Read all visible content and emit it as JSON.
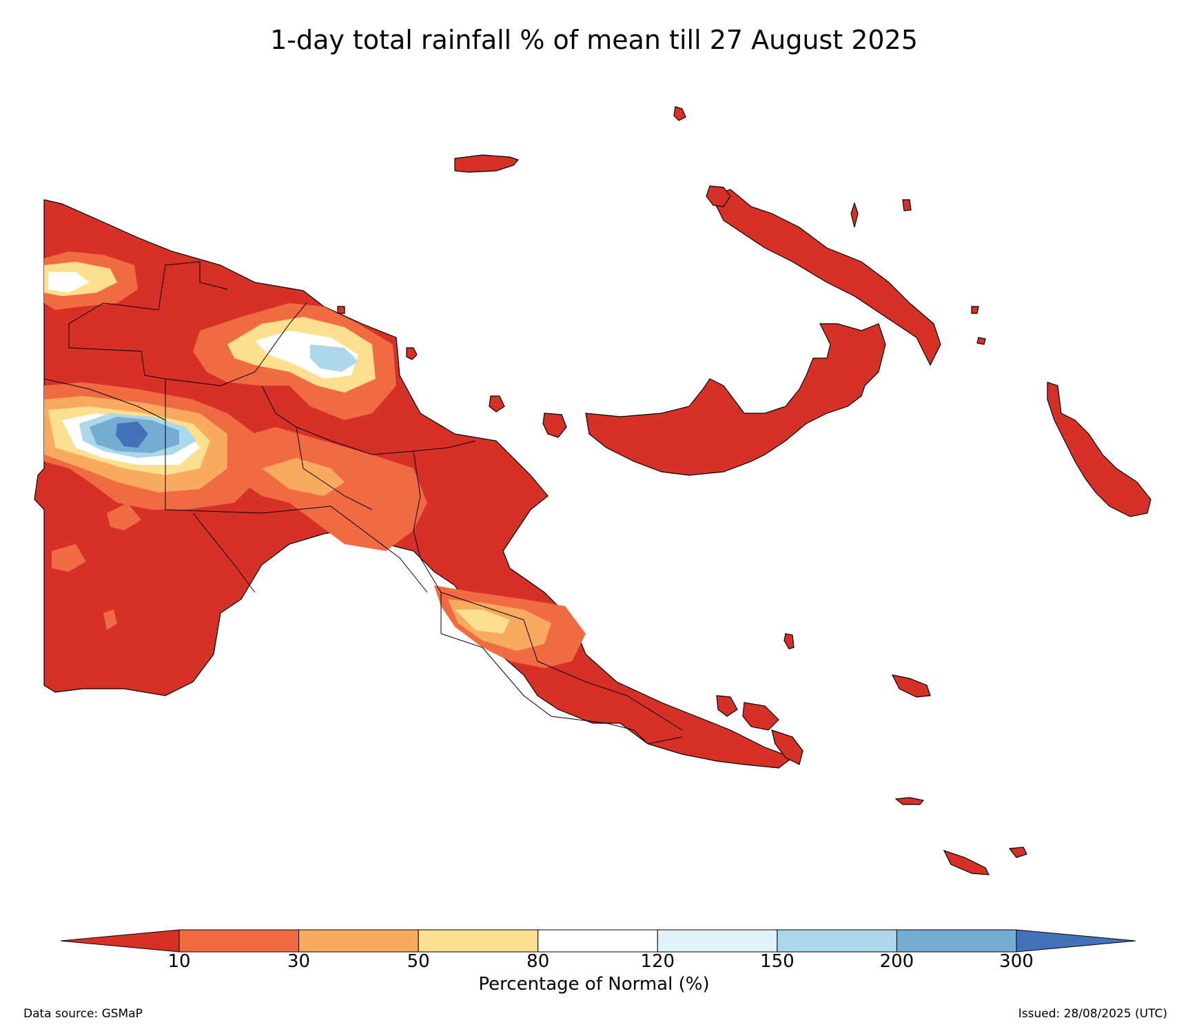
{
  "title": "1-day total rainfall % of mean till 27 August 2025",
  "colorbar": {
    "label": "Percentage of Normal (%)",
    "ticks": [
      "10",
      "30",
      "50",
      "80",
      "120",
      "150",
      "200",
      "300"
    ],
    "colors": {
      "below_10": "#d73027",
      "10_30": "#f06a42",
      "30_50": "#f8ab5f",
      "50_80": "#fde08f",
      "80_120": "#ffffff",
      "120_150": "#e0f3f8",
      "150_200": "#abd9e9",
      "200_300": "#74add1",
      "above_300": "#4472b8"
    }
  },
  "footer": {
    "source": "Data source: GSMaP",
    "issued": "Issued: 28/08/2025 (UTC)"
  }
}
